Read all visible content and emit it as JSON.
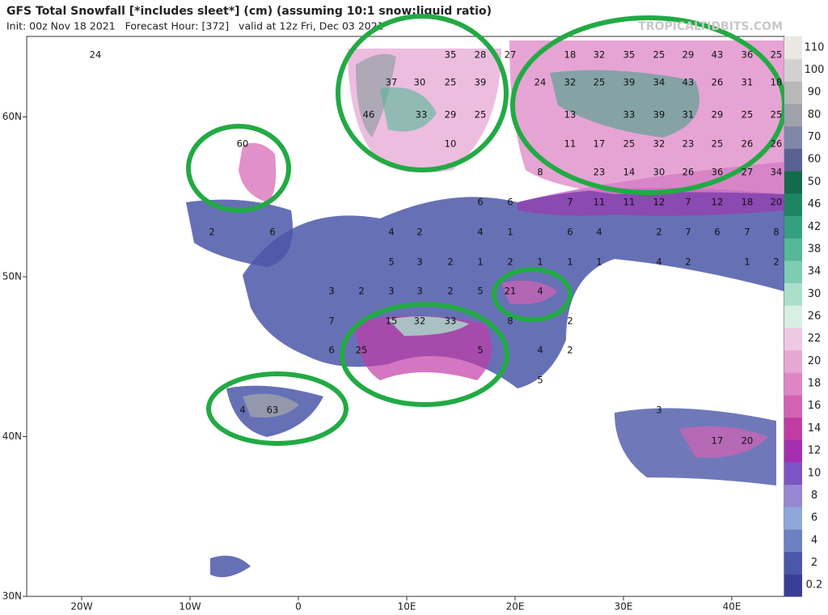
{
  "map": {
    "title": "GFS Total Snowfall [*includes sleet*] (cm) (assuming 10:1 snow:liquid ratio)",
    "subtitle": "Init: 00z Nov 18 2021   Forecast Hour: [372]   valid at 12z Fri, Dec 03 2021",
    "watermark": "TROPICALTIDBITS.COM",
    "xticks": [
      {
        "value": -20,
        "label": "20W"
      },
      {
        "value": -10,
        "label": "10W"
      },
      {
        "value": 0,
        "label": "0"
      },
      {
        "value": 10,
        "label": "10E"
      },
      {
        "value": 20,
        "label": "20E"
      },
      {
        "value": 30,
        "label": "30E"
      },
      {
        "value": 40,
        "label": "40E"
      }
    ],
    "yticks": [
      {
        "value": 30,
        "label": "30N"
      },
      {
        "value": 40,
        "label": "40N"
      },
      {
        "value": 50,
        "label": "50N"
      },
      {
        "value": 60,
        "label": "60N"
      }
    ],
    "colorbar": {
      "levels": [
        0.2,
        2,
        4,
        6,
        8,
        10,
        12,
        14,
        16,
        18,
        20,
        22,
        26,
        30,
        34,
        38,
        42,
        46,
        50,
        60,
        70,
        80,
        90,
        100,
        110
      ],
      "colors": [
        "#3a3f96",
        "#4b57a8",
        "#6c80c2",
        "#8ea9d9",
        "#9688d2",
        "#7d55c4",
        "#a32fb0",
        "#c23ca6",
        "#d462b4",
        "#de86c5",
        "#e7a7d5",
        "#efc8e3",
        "#d8efe4",
        "#abdfcb",
        "#7ecdb1",
        "#54b896",
        "#35a07d",
        "#1f8461",
        "#146a4b",
        "#5a6294",
        "#7f88a8",
        "#9fa2ab",
        "#b9b9b9",
        "#d1d1d1",
        "#e9e9e1"
      ]
    },
    "labels": [
      24,
      35,
      28,
      27,
      37,
      30,
      25,
      39,
      46,
      33,
      29,
      25,
      10,
      18,
      32,
      35,
      25,
      29,
      43,
      36,
      25,
      24,
      32,
      25,
      39,
      34,
      43,
      26,
      31,
      18,
      13,
      33,
      39,
      31,
      29,
      25,
      25,
      11,
      17,
      25,
      32,
      23,
      25,
      26,
      26,
      8,
      23,
      14,
      30,
      26,
      36,
      27,
      34,
      6,
      6,
      7,
      11,
      11,
      12,
      7,
      12,
      18,
      20,
      2,
      6,
      4,
      2,
      4,
      1,
      6,
      4,
      2,
      7,
      6,
      7,
      8,
      5,
      3,
      2,
      1,
      2,
      1,
      1,
      1,
      4,
      2,
      1,
      2,
      3,
      2,
      3,
      3,
      2,
      5,
      21,
      4,
      7,
      15,
      32,
      33,
      8,
      2,
      6,
      25,
      5,
      4,
      2,
      5,
      4,
      63,
      3,
      17,
      20,
      60
    ]
  }
}
